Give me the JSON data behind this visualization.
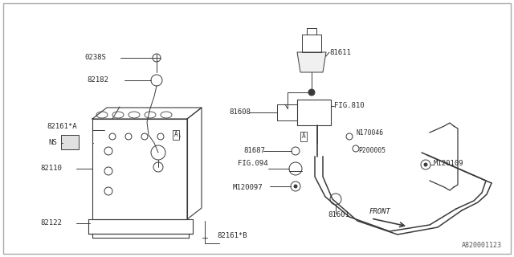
{
  "bg_color": "#ffffff",
  "border_color": "#cccccc",
  "lc": "#3a3a3a",
  "tc": "#2a2a2a",
  "diagram_code": "A820001123",
  "fs": 6.5,
  "fs_small": 5.5,
  "figsize": [
    6.4,
    3.2
  ],
  "dpi": 100,
  "xlim": [
    0,
    640
  ],
  "ylim": [
    0,
    320
  ]
}
